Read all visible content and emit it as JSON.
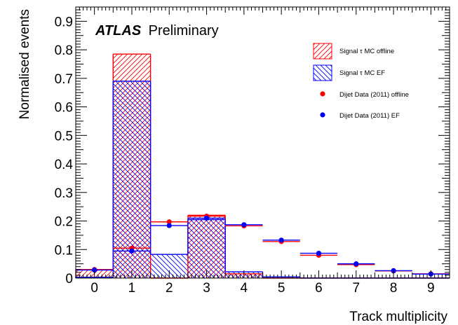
{
  "chart_data": {
    "type": "bar",
    "label": {
      "experiment": "ATLAS",
      "status": "Preliminary"
    },
    "xlabel": "Track multiplicity",
    "ylabel": "Normalised events",
    "xlim": [
      -0.5,
      9.5
    ],
    "ylim": [
      0,
      0.95
    ],
    "x_ticks": [
      "0",
      "1",
      "2",
      "3",
      "4",
      "5",
      "6",
      "7",
      "8",
      "9"
    ],
    "y_ticks": [
      "0",
      "0.1",
      "0.2",
      "0.3",
      "0.4",
      "0.5",
      "0.6",
      "0.7",
      "0.8",
      "0.9"
    ],
    "grid": false,
    "legend_position": "top-right",
    "categories": [
      0,
      1,
      2,
      3,
      4,
      5,
      6,
      7,
      8,
      9
    ],
    "series": [
      {
        "name": "Signal τ MC offline",
        "kind": "histogram",
        "color": "#ff0000",
        "hatch": "diagonal-forward",
        "values": [
          0.03,
          0.785,
          0.0,
          0.22,
          0.015,
          0.0,
          0.0,
          0.0,
          0.0,
          0.0
        ]
      },
      {
        "name": "Signal τ MC EF",
        "kind": "histogram",
        "color": "#0000ff",
        "hatch": "diagonal-back",
        "values": [
          0.003,
          0.69,
          0.083,
          0.205,
          0.022,
          0.004,
          0.0,
          0.0,
          0.0,
          0.0
        ]
      },
      {
        "name": "Dijet Data (2011) offline",
        "kind": "points",
        "color": "#ff0000",
        "values": [
          0.03,
          0.105,
          0.197,
          0.217,
          0.183,
          0.128,
          0.08,
          0.047,
          0.025,
          0.015
        ]
      },
      {
        "name": "Dijet Data (2011) EF",
        "kind": "points",
        "color": "#0000ff",
        "values": [
          0.028,
          0.095,
          0.184,
          0.21,
          0.187,
          0.133,
          0.087,
          0.05,
          0.026,
          0.014
        ]
      }
    ]
  }
}
